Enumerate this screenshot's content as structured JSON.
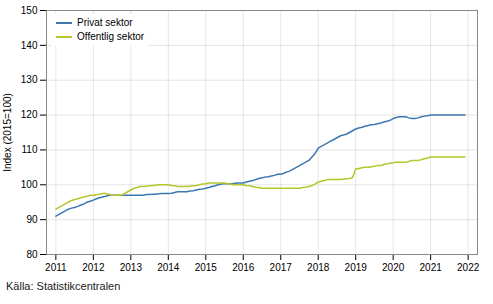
{
  "chart_data": {
    "type": "line",
    "ylabel": "Index (2015=100)",
    "caption": "Källa: Statistikcentralen",
    "x": [
      2011.0,
      2011.083,
      2011.167,
      2011.25,
      2011.333,
      2011.417,
      2011.5,
      2011.583,
      2011.667,
      2011.75,
      2011.833,
      2011.917,
      2012.0,
      2012.083,
      2012.167,
      2012.25,
      2012.333,
      2012.417,
      2012.5,
      2012.583,
      2012.667,
      2012.75,
      2012.833,
      2012.917,
      2013.0,
      2013.083,
      2013.167,
      2013.25,
      2013.333,
      2013.417,
      2013.5,
      2013.583,
      2013.667,
      2013.75,
      2013.833,
      2013.917,
      2014.0,
      2014.083,
      2014.167,
      2014.25,
      2014.333,
      2014.417,
      2014.5,
      2014.583,
      2014.667,
      2014.75,
      2014.833,
      2014.917,
      2015.0,
      2015.083,
      2015.167,
      2015.25,
      2015.333,
      2015.417,
      2015.5,
      2015.583,
      2015.667,
      2015.75,
      2015.833,
      2015.917,
      2016.0,
      2016.083,
      2016.167,
      2016.25,
      2016.333,
      2016.417,
      2016.5,
      2016.583,
      2016.667,
      2016.75,
      2016.833,
      2016.917,
      2017.0,
      2017.083,
      2017.167,
      2017.25,
      2017.333,
      2017.417,
      2017.5,
      2017.583,
      2017.667,
      2017.75,
      2017.833,
      2017.917,
      2018.0,
      2018.083,
      2018.167,
      2018.25,
      2018.333,
      2018.417,
      2018.5,
      2018.583,
      2018.667,
      2018.75,
      2018.833,
      2018.917,
      2019.0,
      2019.083,
      2019.167,
      2019.25,
      2019.333,
      2019.417,
      2019.5,
      2019.583,
      2019.667,
      2019.75,
      2019.833,
      2019.917,
      2020.0,
      2020.083,
      2020.167,
      2020.25,
      2020.333,
      2020.417,
      2020.5,
      2020.583,
      2020.667,
      2020.75,
      2020.833,
      2020.917,
      2021.0,
      2021.083,
      2021.167,
      2021.25,
      2021.333,
      2021.417,
      2021.5,
      2021.583,
      2021.667,
      2021.75,
      2021.833,
      2021.917
    ],
    "series": [
      {
        "name": "Privat sektor",
        "color": "#3b78b0",
        "values": [
          91.0,
          91.5,
          92.0,
          92.5,
          93.0,
          93.3,
          93.5,
          93.8,
          94.2,
          94.5,
          95.0,
          95.3,
          95.6,
          96.0,
          96.3,
          96.5,
          96.7,
          97.0,
          97.0,
          97.0,
          97.0,
          97.0,
          97.0,
          97.0,
          97.0,
          97.0,
          97.0,
          97.0,
          97.0,
          97.2,
          97.2,
          97.3,
          97.3,
          97.4,
          97.5,
          97.5,
          97.5,
          97.6,
          97.8,
          98.0,
          98.0,
          98.0,
          98.0,
          98.2,
          98.3,
          98.5,
          98.7,
          98.8,
          99.0,
          99.2,
          99.5,
          99.7,
          100.0,
          100.2,
          100.3,
          100.3,
          100.3,
          100.4,
          100.5,
          100.5,
          100.5,
          100.8,
          101.0,
          101.2,
          101.5,
          101.8,
          102.0,
          102.2,
          102.3,
          102.5,
          102.7,
          103.0,
          103.0,
          103.3,
          103.7,
          104.0,
          104.5,
          105.0,
          105.5,
          106.0,
          106.5,
          107.0,
          108.0,
          109.0,
          110.5,
          111.0,
          111.5,
          112.0,
          112.5,
          113.0,
          113.5,
          114.0,
          114.3,
          114.5,
          115.0,
          115.5,
          116.0,
          116.3,
          116.5,
          116.8,
          117.0,
          117.2,
          117.3,
          117.5,
          117.7,
          118.0,
          118.2,
          118.5,
          119.0,
          119.3,
          119.5,
          119.5,
          119.5,
          119.2,
          119.0,
          119.0,
          119.2,
          119.5,
          119.7,
          119.8,
          120.0,
          120.0,
          120.0,
          120.0,
          120.0,
          120.0,
          120.0,
          120.0,
          120.0,
          120.0,
          120.0,
          120.0
        ]
      },
      {
        "name": "Offentlig sektor",
        "color": "#b5c62a",
        "values": [
          93.0,
          93.5,
          94.0,
          94.5,
          95.0,
          95.5,
          95.8,
          96.0,
          96.3,
          96.5,
          96.7,
          97.0,
          97.0,
          97.2,
          97.3,
          97.5,
          97.5,
          97.3,
          97.0,
          97.0,
          97.0,
          97.0,
          97.5,
          98.0,
          98.5,
          99.0,
          99.2,
          99.5,
          99.5,
          99.6,
          99.7,
          99.8,
          99.9,
          100.0,
          100.0,
          100.0,
          100.0,
          99.8,
          99.7,
          99.5,
          99.5,
          99.5,
          99.5,
          99.6,
          99.7,
          99.8,
          100.0,
          100.2,
          100.3,
          100.5,
          100.5,
          100.5,
          100.5,
          100.5,
          100.5,
          100.3,
          100.2,
          100.0,
          100.0,
          100.0,
          100.0,
          99.8,
          99.7,
          99.5,
          99.3,
          99.2,
          99.0,
          99.0,
          99.0,
          99.0,
          99.0,
          99.0,
          99.0,
          99.0,
          99.0,
          99.0,
          99.0,
          99.0,
          99.0,
          99.2,
          99.3,
          99.5,
          99.8,
          100.2,
          100.8,
          101.0,
          101.2,
          101.5,
          101.5,
          101.5,
          101.5,
          101.5,
          101.6,
          101.7,
          101.8,
          102.0,
          104.5,
          104.7,
          104.9,
          105.0,
          105.0,
          105.2,
          105.3,
          105.5,
          105.5,
          105.8,
          106.0,
          106.2,
          106.3,
          106.5,
          106.5,
          106.5,
          106.5,
          106.7,
          107.0,
          107.0,
          107.0,
          107.2,
          107.5,
          107.7,
          108.0,
          108.0,
          108.0,
          108.0,
          108.0,
          108.0,
          108.0,
          108.0,
          108.0,
          108.0,
          108.0,
          108.0
        ]
      }
    ],
    "xlim": [
      2010.75,
      2022.25
    ],
    "xticks": [
      2011,
      2012,
      2013,
      2014,
      2015,
      2016,
      2017,
      2018,
      2019,
      2020,
      2021,
      2022
    ],
    "ylim": [
      80,
      150
    ],
    "yticks": [
      80,
      90,
      100,
      110,
      120,
      130,
      140,
      150
    ],
    "grid": true,
    "legend": "top-left"
  }
}
